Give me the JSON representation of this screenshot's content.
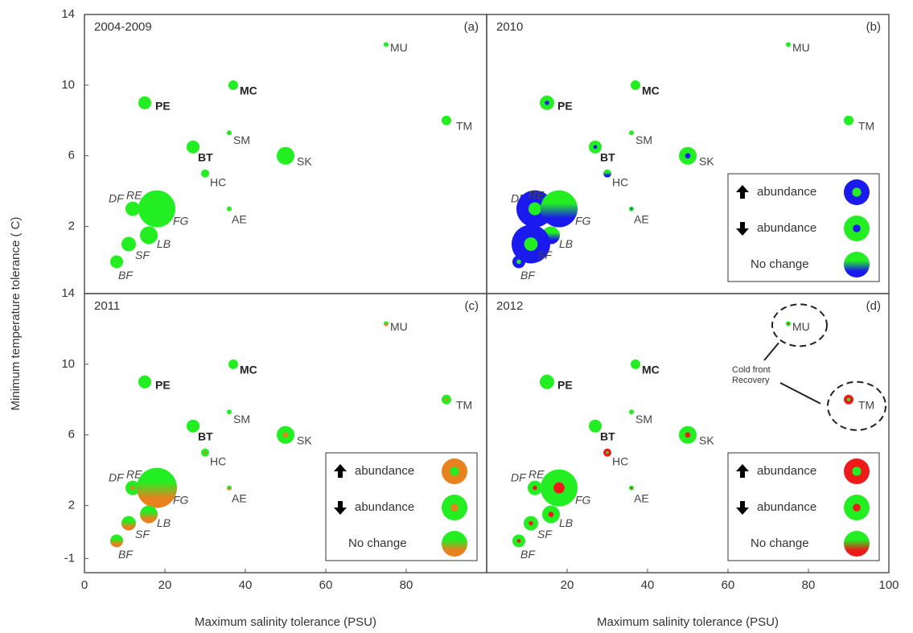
{
  "chart_data": [
    {
      "type": "bubble",
      "title": "2004-2009",
      "panel_label": "(a)",
      "ylabel": "Minimum temperature tolerance ( C)",
      "labels": [
        "MU",
        "MC",
        "PE",
        "TM",
        "SM",
        "BT",
        "SK",
        "HC",
        "DF",
        "RE",
        "FG",
        "AE",
        "LB",
        "SF",
        "BF"
      ],
      "x": [
        75,
        37,
        15,
        90,
        36,
        27,
        50,
        30,
        12,
        12,
        18,
        36,
        16,
        11,
        8
      ],
      "y": [
        12.3,
        10,
        9,
        8,
        7.3,
        6.5,
        6,
        5,
        3,
        3,
        3,
        3,
        1.5,
        1,
        0
      ],
      "sizes": [
        3,
        6,
        8,
        6,
        3,
        8,
        11,
        5,
        4,
        9,
        23,
        3,
        11,
        9,
        8
      ],
      "color": "#22ee22",
      "xlim": [
        0,
        100
      ],
      "ylim": [
        -1.8,
        14
      ],
      "yticks": [
        2,
        6,
        10,
        14
      ]
    },
    {
      "type": "bubble",
      "title": "2010",
      "panel_label": "(b)",
      "labels": [
        "MU",
        "MC",
        "PE",
        "TM",
        "SM",
        "BT",
        "SK",
        "HC",
        "DF",
        "RE",
        "FG",
        "AE",
        "LB",
        "SF",
        "BF"
      ],
      "x": [
        75,
        37,
        15,
        90,
        36,
        27,
        50,
        30,
        12,
        12,
        18,
        36,
        16,
        11,
        8
      ],
      "y": [
        12.3,
        10,
        9,
        8,
        7.3,
        6.5,
        6,
        5,
        3,
        3,
        3,
        3,
        1.5,
        1,
        0
      ],
      "sizes": [
        3,
        6,
        9,
        6,
        3,
        8,
        11,
        5,
        4,
        23,
        23,
        3,
        11,
        24,
        8
      ],
      "change": [
        null,
        null,
        "down",
        null,
        null,
        "down",
        "down",
        "none",
        null,
        "up",
        "none",
        "down",
        "none",
        "up",
        "up"
      ],
      "color": "#22ee22",
      "change_color": "#1a1aee",
      "legend_labels": [
        "abundance",
        "abundance",
        "No change"
      ],
      "xlim": [
        0,
        100
      ],
      "ylim": [
        -1.8,
        14
      ]
    },
    {
      "type": "bubble",
      "title": "2011",
      "panel_label": "(c)",
      "xlabel": "Maximum salinity tolerance (PSU)",
      "labels": [
        "MU",
        "MC",
        "PE",
        "TM",
        "SM",
        "BT",
        "SK",
        "HC",
        "DF",
        "RE",
        "FG",
        "AE",
        "LB",
        "SF",
        "BF"
      ],
      "x": [
        75,
        37,
        15,
        90,
        36,
        27,
        50,
        30,
        12,
        12,
        18,
        36,
        16,
        11,
        8
      ],
      "y": [
        12.3,
        10,
        9,
        8,
        7.3,
        6.5,
        6,
        5,
        3,
        3,
        3,
        3,
        1.5,
        1,
        0
      ],
      "sizes": [
        3,
        6,
        8,
        6,
        3,
        8,
        11,
        5,
        4,
        9,
        25,
        3,
        11,
        9,
        8
      ],
      "change": [
        "none",
        null,
        null,
        "down",
        null,
        null,
        "down",
        "down",
        "down",
        "down",
        "none",
        "none",
        "none",
        "none",
        "none"
      ],
      "color": "#22ee22",
      "change_color": "#e8821e",
      "legend_labels": [
        "abundance",
        "abundance",
        "No change"
      ],
      "xlim": [
        0,
        100
      ],
      "ylim": [
        -1.8,
        14
      ],
      "xticks": [
        0,
        20,
        40,
        60,
        80
      ],
      "yticks": [
        -1,
        2,
        6,
        10,
        14
      ]
    },
    {
      "type": "bubble",
      "title": "2012",
      "panel_label": "(d)",
      "xlabel": "Maximum salinity tolerance (PSU)",
      "annotation": [
        "Cold front",
        "Recovery"
      ],
      "labels": [
        "MU",
        "MC",
        "PE",
        "TM",
        "SM",
        "BT",
        "SK",
        "HC",
        "DF",
        "RE",
        "FG",
        "AE",
        "LB",
        "SF",
        "BF"
      ],
      "x": [
        75,
        37,
        15,
        90,
        36,
        27,
        50,
        30,
        12,
        12,
        18,
        36,
        16,
        11,
        8
      ],
      "y": [
        12.3,
        10,
        9,
        8,
        7.3,
        6.5,
        6,
        5,
        3,
        3,
        3,
        3,
        1.5,
        1,
        0
      ],
      "sizes": [
        3,
        6,
        9,
        6,
        3,
        8,
        11,
        5,
        4,
        9,
        23,
        3,
        11,
        9,
        8
      ],
      "change": [
        "down",
        null,
        null,
        "up",
        null,
        null,
        "down",
        "up",
        "down",
        "down",
        "down",
        "down",
        "down",
        "down",
        "down"
      ],
      "color": "#22ee22",
      "change_color": "#ee1a1a",
      "legend_labels": [
        "abundance",
        "abundance",
        "No change"
      ],
      "xlim": [
        0,
        100
      ],
      "ylim": [
        -1.8,
        14
      ],
      "xticks": [
        20,
        40,
        60,
        80,
        100
      ]
    }
  ]
}
